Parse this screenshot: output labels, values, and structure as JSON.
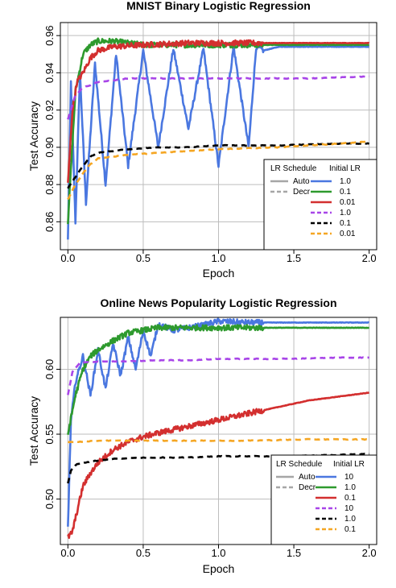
{
  "chart_data": [
    {
      "type": "line",
      "title": "MNIST Binary Logistic Regression",
      "xlabel": "Epoch",
      "ylabel": "Test Accuracy",
      "xlim": [
        -0.05,
        2.05
      ],
      "ylim": [
        0.845,
        0.967
      ],
      "xticks": [
        0.0,
        0.5,
        1.0,
        1.5,
        2.0
      ],
      "xtick_labels": [
        "0.0",
        "0.5",
        "1.0",
        "1.5",
        "2.0"
      ],
      "yticks": [
        0.86,
        0.88,
        0.9,
        0.92,
        0.94,
        0.96
      ],
      "ytick_labels": [
        "0.86",
        "0.88",
        "0.90",
        "0.92",
        "0.94",
        "0.96"
      ],
      "grid": true,
      "legend": {
        "placement": "bottom-right",
        "style_header": "LR Schedule",
        "lr_header": "Initial LR",
        "styles": [
          {
            "label": "Auto",
            "dash": "solid"
          },
          {
            "label": "Decr",
            "dash": "dashed"
          }
        ],
        "entries": [
          "1.0",
          "0.1",
          "0.01",
          "1.0",
          "0.1",
          "0.01"
        ]
      },
      "series": [
        {
          "schedule": "Auto",
          "lr": "1.0",
          "color": "#4a77e0",
          "dash": "solid",
          "points": [
            [
              0.0,
              0.85
            ],
            [
              0.02,
              0.935
            ],
            [
              0.05,
              0.86
            ],
            [
              0.08,
              0.94
            ],
            [
              0.12,
              0.87
            ],
            [
              0.18,
              0.945
            ],
            [
              0.25,
              0.88
            ],
            [
              0.32,
              0.95
            ],
            [
              0.4,
              0.89
            ],
            [
              0.5,
              0.952
            ],
            [
              0.6,
              0.9
            ],
            [
              0.7,
              0.953
            ],
            [
              0.8,
              0.91
            ],
            [
              0.9,
              0.953
            ],
            [
              1.0,
              0.89
            ],
            [
              1.1,
              0.954
            ],
            [
              1.2,
              0.9
            ],
            [
              1.25,
              0.954
            ],
            [
              1.3,
              0.952
            ],
            [
              1.4,
              0.954
            ],
            [
              1.6,
              0.954
            ],
            [
              1.8,
              0.954
            ],
            [
              2.0,
              0.954
            ]
          ]
        },
        {
          "schedule": "Auto",
          "lr": "0.1",
          "color": "#2e9a2e",
          "dash": "solid",
          "points": [
            [
              0.0,
              0.86
            ],
            [
              0.05,
              0.93
            ],
            [
              0.1,
              0.95
            ],
            [
              0.15,
              0.955
            ],
            [
              0.2,
              0.957
            ],
            [
              0.3,
              0.957
            ],
            [
              0.4,
              0.956
            ],
            [
              0.5,
              0.955
            ],
            [
              0.7,
              0.955
            ],
            [
              1.0,
              0.955
            ],
            [
              1.5,
              0.955
            ],
            [
              2.0,
              0.955
            ]
          ]
        },
        {
          "schedule": "Auto",
          "lr": "0.01",
          "color": "#d32f2f",
          "dash": "solid",
          "points": [
            [
              0.0,
              0.88
            ],
            [
              0.03,
              0.92
            ],
            [
              0.06,
              0.935
            ],
            [
              0.1,
              0.94
            ],
            [
              0.15,
              0.948
            ],
            [
              0.2,
              0.952
            ],
            [
              0.3,
              0.954
            ],
            [
              0.5,
              0.955
            ],
            [
              0.8,
              0.956
            ],
            [
              1.2,
              0.956
            ],
            [
              1.6,
              0.956
            ],
            [
              2.0,
              0.956
            ]
          ]
        },
        {
          "schedule": "Decr",
          "lr": "1.0",
          "color": "#a845e8",
          "dash": "dashed",
          "points": [
            [
              0.0,
              0.915
            ],
            [
              0.05,
              0.928
            ],
            [
              0.1,
              0.932
            ],
            [
              0.2,
              0.935
            ],
            [
              0.4,
              0.937
            ],
            [
              0.8,
              0.937
            ],
            [
              1.2,
              0.937
            ],
            [
              1.6,
              0.937
            ],
            [
              2.0,
              0.938
            ]
          ]
        },
        {
          "schedule": "Decr",
          "lr": "0.1",
          "color": "#000000",
          "dash": "dashed",
          "points": [
            [
              0.0,
              0.878
            ],
            [
              0.05,
              0.884
            ],
            [
              0.1,
              0.89
            ],
            [
              0.15,
              0.895
            ],
            [
              0.2,
              0.897
            ],
            [
              0.4,
              0.899
            ],
            [
              0.6,
              0.9
            ],
            [
              0.8,
              0.9
            ],
            [
              1.0,
              0.901
            ],
            [
              1.4,
              0.901
            ],
            [
              1.8,
              0.902
            ],
            [
              2.0,
              0.902
            ]
          ]
        },
        {
          "schedule": "Decr",
          "lr": "0.01",
          "color": "#f5a623",
          "dash": "dashed",
          "points": [
            [
              0.0,
              0.872
            ],
            [
              0.05,
              0.88
            ],
            [
              0.1,
              0.886
            ],
            [
              0.15,
              0.891
            ],
            [
              0.2,
              0.894
            ],
            [
              0.4,
              0.896
            ],
            [
              0.6,
              0.897
            ],
            [
              0.8,
              0.898
            ],
            [
              1.0,
              0.899
            ],
            [
              1.4,
              0.9
            ],
            [
              1.8,
              0.902
            ],
            [
              2.0,
              0.903
            ]
          ]
        }
      ]
    },
    {
      "type": "line",
      "title": "Online News Popularity Logistic Regression",
      "xlabel": "Epoch",
      "ylabel": "Test Accuracy",
      "xlim": [
        -0.05,
        2.05
      ],
      "ylim": [
        0.465,
        0.64
      ],
      "xticks": [
        0.0,
        0.5,
        1.0,
        1.5,
        2.0
      ],
      "xtick_labels": [
        "0.0",
        "0.5",
        "1.0",
        "1.5",
        "2.0"
      ],
      "yticks": [
        0.5,
        0.55,
        0.6
      ],
      "ytick_labels": [
        "0.50",
        "0.55",
        "0.60"
      ],
      "grid": true,
      "legend": {
        "placement": "bottom-right",
        "style_header": "LR Schedule",
        "lr_header": "Initial LR",
        "styles": [
          {
            "label": "Auto",
            "dash": "solid"
          },
          {
            "label": "Decr",
            "dash": "dashed"
          }
        ],
        "entries": [
          "10",
          "1.0",
          "0.1",
          "10",
          "1.0",
          "0.1"
        ]
      },
      "series": [
        {
          "schedule": "Auto",
          "lr": "10",
          "color": "#4a77e0",
          "dash": "solid",
          "points": [
            [
              0.0,
              0.478
            ],
            [
              0.02,
              0.56
            ],
            [
              0.05,
              0.59
            ],
            [
              0.1,
              0.61
            ],
            [
              0.15,
              0.58
            ],
            [
              0.2,
              0.615
            ],
            [
              0.25,
              0.585
            ],
            [
              0.3,
              0.62
            ],
            [
              0.35,
              0.595
            ],
            [
              0.4,
              0.625
            ],
            [
              0.45,
              0.6
            ],
            [
              0.5,
              0.63
            ],
            [
              0.55,
              0.61
            ],
            [
              0.6,
              0.635
            ],
            [
              0.7,
              0.63
            ],
            [
              0.8,
              0.632
            ],
            [
              0.9,
              0.634
            ],
            [
              1.0,
              0.637
            ],
            [
              1.2,
              0.636
            ],
            [
              1.5,
              0.636
            ],
            [
              2.0,
              0.636
            ]
          ]
        },
        {
          "schedule": "Auto",
          "lr": "1.0",
          "color": "#2e9a2e",
          "dash": "solid",
          "points": [
            [
              0.0,
              0.55
            ],
            [
              0.05,
              0.58
            ],
            [
              0.1,
              0.6
            ],
            [
              0.15,
              0.61
            ],
            [
              0.2,
              0.615
            ],
            [
              0.3,
              0.622
            ],
            [
              0.4,
              0.628
            ],
            [
              0.5,
              0.63
            ],
            [
              0.6,
              0.632
            ],
            [
              0.8,
              0.632
            ],
            [
              1.0,
              0.632
            ],
            [
              1.5,
              0.632
            ],
            [
              2.0,
              0.632
            ]
          ]
        },
        {
          "schedule": "Auto",
          "lr": "0.1",
          "color": "#d32f2f",
          "dash": "solid",
          "points": [
            [
              0.0,
              0.47
            ],
            [
              0.03,
              0.475
            ],
            [
              0.06,
              0.49
            ],
            [
              0.1,
              0.51
            ],
            [
              0.15,
              0.52
            ],
            [
              0.2,
              0.528
            ],
            [
              0.3,
              0.538
            ],
            [
              0.4,
              0.544
            ],
            [
              0.5,
              0.548
            ],
            [
              0.6,
              0.551
            ],
            [
              0.8,
              0.556
            ],
            [
              1.0,
              0.561
            ],
            [
              1.2,
              0.566
            ],
            [
              1.4,
              0.571
            ],
            [
              1.6,
              0.576
            ],
            [
              1.8,
              0.579
            ],
            [
              2.0,
              0.582
            ]
          ]
        },
        {
          "schedule": "Decr",
          "lr": "10",
          "color": "#a845e8",
          "dash": "dashed",
          "points": [
            [
              0.0,
              0.58
            ],
            [
              0.03,
              0.598
            ],
            [
              0.08,
              0.605
            ],
            [
              0.2,
              0.606
            ],
            [
              0.4,
              0.606
            ],
            [
              0.6,
              0.607
            ],
            [
              0.8,
              0.607
            ],
            [
              1.0,
              0.608
            ],
            [
              1.4,
              0.608
            ],
            [
              1.8,
              0.609
            ],
            [
              2.0,
              0.609
            ]
          ]
        },
        {
          "schedule": "Decr",
          "lr": "1.0",
          "color": "#000000",
          "dash": "dashed",
          "points": [
            [
              0.0,
              0.512
            ],
            [
              0.02,
              0.522
            ],
            [
              0.06,
              0.527
            ],
            [
              0.15,
              0.529
            ],
            [
              0.3,
              0.531
            ],
            [
              0.5,
              0.532
            ],
            [
              0.8,
              0.532
            ],
            [
              1.0,
              0.533
            ],
            [
              1.4,
              0.533
            ],
            [
              1.8,
              0.534
            ],
            [
              2.0,
              0.535
            ]
          ]
        },
        {
          "schedule": "Decr",
          "lr": "0.1",
          "color": "#f5a623",
          "dash": "dashed",
          "points": [
            [
              0.0,
              0.544
            ],
            [
              0.05,
              0.544
            ],
            [
              0.2,
              0.545
            ],
            [
              0.4,
              0.545
            ],
            [
              0.6,
              0.545
            ],
            [
              0.8,
              0.545
            ],
            [
              1.2,
              0.545
            ],
            [
              1.6,
              0.546
            ],
            [
              2.0,
              0.546
            ]
          ]
        }
      ]
    }
  ]
}
